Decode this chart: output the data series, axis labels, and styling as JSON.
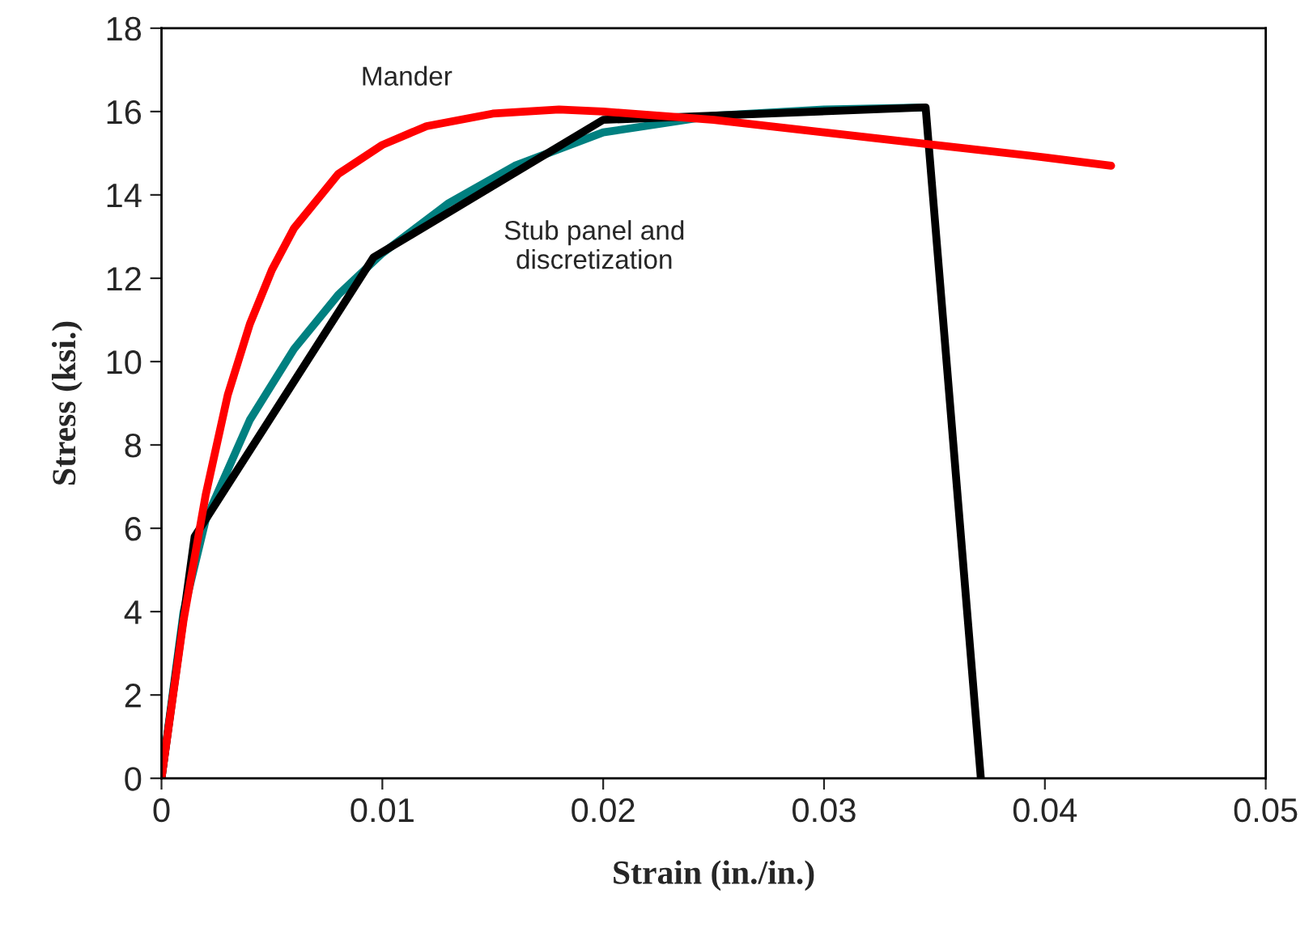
{
  "chart_data": {
    "type": "line",
    "xlabel": "Strain (in./in.)",
    "ylabel": "Stress (ksi.)",
    "xlim": [
      0,
      0.05
    ],
    "xticks": [
      {
        "value": 0,
        "label": "0"
      },
      0.01,
      0.02,
      0.03,
      0.04,
      0.05
    ],
    "ylim": [
      0,
      18
    ],
    "yticks": [
      0,
      2,
      4,
      6,
      8,
      10,
      12,
      14,
      16,
      18
    ],
    "grid": false,
    "legend": false,
    "series": [
      {
        "color": "#008080",
        "x": [
          0,
          0.001,
          0.002,
          0.004,
          0.006,
          0.008,
          0.01,
          0.013,
          0.016,
          0.02,
          0.025,
          0.03,
          0.0345
        ],
        "values": [
          0,
          4,
          6.2,
          8.6,
          10.3,
          11.6,
          12.6,
          13.8,
          14.7,
          15.5,
          15.9,
          16.05,
          16.1
        ]
      },
      {
        "color": "#000000",
        "x": [
          0,
          0.0015,
          0.0096,
          0.02,
          0.0346,
          0.0371
        ],
        "values": [
          0,
          5.8,
          12.5,
          15.8,
          16.1,
          0
        ]
      },
      {
        "color": "#ff0000",
        "x": [
          0,
          0.001,
          0.002,
          0.003,
          0.004,
          0.005,
          0.006,
          0.008,
          0.01,
          0.012,
          0.015,
          0.018,
          0.02,
          0.025,
          0.03,
          0.035,
          0.04,
          0.043
        ],
        "values": [
          0,
          3.8,
          6.8,
          9.2,
          10.9,
          12.2,
          13.2,
          14.5,
          15.2,
          15.65,
          15.95,
          16.05,
          16.0,
          15.8,
          15.5,
          15.2,
          14.9,
          14.7
        ]
      }
    ],
    "annotations": [
      "Mander",
      "Stub panel and\ndiscretization"
    ]
  }
}
